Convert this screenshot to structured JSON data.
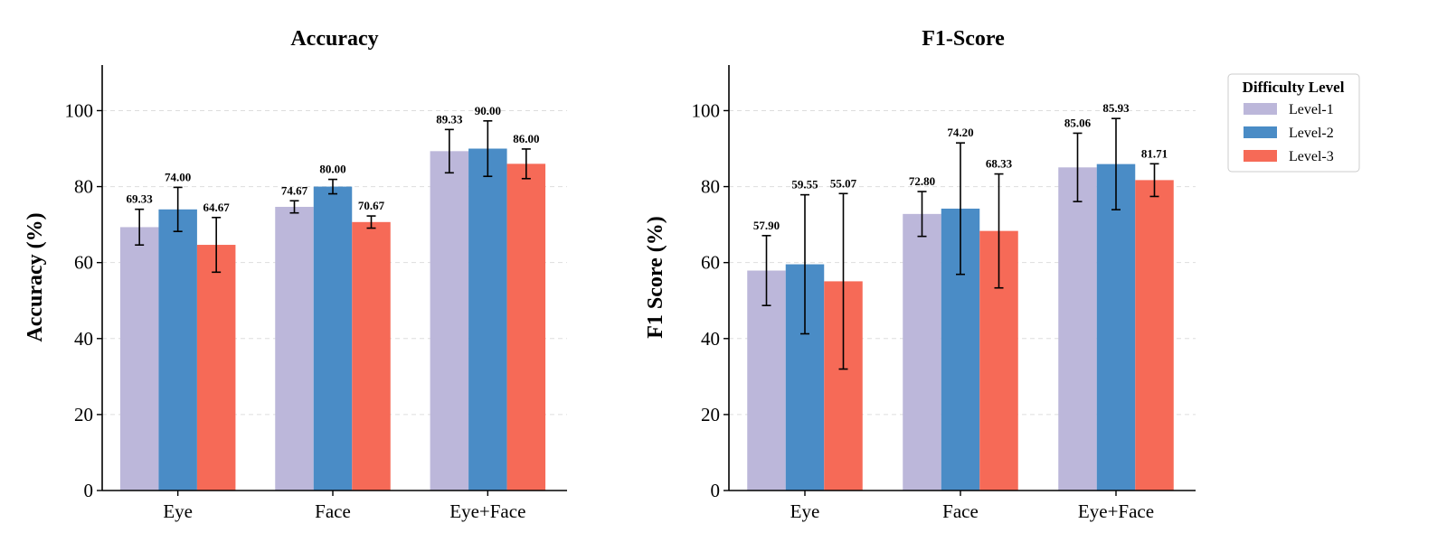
{
  "chart_data": [
    {
      "type": "bar",
      "title": "Accuracy",
      "xlabel": "",
      "ylabel": "Accuracy (%)",
      "ylim": [
        0,
        112
      ],
      "yticks": [
        0,
        20,
        40,
        60,
        80,
        100
      ],
      "grid": true,
      "categories": [
        "Eye",
        "Face",
        "Eye+Face"
      ],
      "series": [
        {
          "name": "Level-1",
          "values": [
            69.33,
            74.67,
            89.33
          ],
          "errors": [
            4.7,
            1.6,
            5.7
          ],
          "labels": [
            "69.33",
            "74.67",
            "89.33"
          ]
        },
        {
          "name": "Level-2",
          "values": [
            74.0,
            80.0,
            90.0
          ],
          "errors": [
            5.8,
            1.9,
            7.3
          ],
          "labels": [
            "74.00",
            "80.00",
            "90.00"
          ]
        },
        {
          "name": "Level-3",
          "values": [
            64.67,
            70.67,
            86.0
          ],
          "errors": [
            7.2,
            1.6,
            3.9
          ],
          "labels": [
            "64.67",
            "70.67",
            "86.00"
          ]
        }
      ]
    },
    {
      "type": "bar",
      "title": "F1-Score",
      "xlabel": "",
      "ylabel": "F1 Score (%)",
      "ylim": [
        0,
        112
      ],
      "yticks": [
        0,
        20,
        40,
        60,
        80,
        100
      ],
      "grid": true,
      "categories": [
        "Eye",
        "Face",
        "Eye+Face"
      ],
      "series": [
        {
          "name": "Level-1",
          "values": [
            57.9,
            72.8,
            85.06
          ],
          "errors": [
            9.2,
            5.9,
            9.0
          ],
          "labels": [
            "57.90",
            "72.80",
            "85.06"
          ]
        },
        {
          "name": "Level-2",
          "values": [
            59.55,
            74.2,
            85.93
          ],
          "errors": [
            18.3,
            17.3,
            12.0
          ],
          "labels": [
            "59.55",
            "74.20",
            "85.93"
          ]
        },
        {
          "name": "Level-3",
          "values": [
            55.07,
            68.33,
            81.71
          ],
          "errors": [
            23.1,
            15.0,
            4.3
          ],
          "labels": [
            "55.07",
            "68.33",
            "81.71"
          ]
        }
      ]
    }
  ],
  "legend": {
    "title": "Difficulty Level",
    "position": "top-right",
    "entries": [
      "Level-1",
      "Level-2",
      "Level-3"
    ]
  },
  "colors": {
    "Level-1": "#bcb7da",
    "Level-2": "#4a8cc6",
    "Level-3": "#f66a57"
  }
}
